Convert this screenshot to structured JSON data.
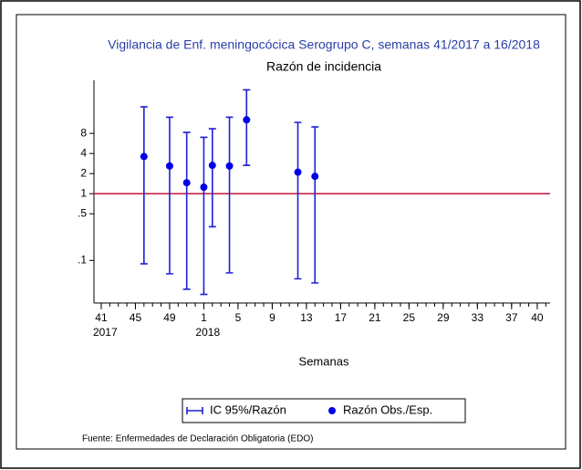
{
  "chart_data": {
    "type": "errorbar-scatter",
    "title": "Vigilancia de Enf. meningocócica Serogrupo C, semanas 41/2017 a 16/2018",
    "subtitle": "Razón de incidencia",
    "x_label": "Semanas",
    "source": "Fuente: Enfermedades de Declaración Obligatoria (EDO)",
    "year_labels": [
      {
        "value": 0,
        "label": "2017"
      },
      {
        "value": 12,
        "label": "2018"
      }
    ],
    "x": [
      5,
      8,
      10,
      12,
      13,
      15,
      17,
      23,
      25
    ],
    "series": [
      {
        "name": "IC 95%/Razón",
        "color": "#1f1fd6",
        "low": [
          0.089,
          0.063,
          0.037,
          0.031,
          0.32,
          0.065,
          2.66,
          0.053,
          0.046
        ],
        "high": [
          20,
          14,
          8.3,
          7.0,
          9.4,
          14,
          36,
          11.7,
          10
        ]
      },
      {
        "name": "Razón Obs./Esp.",
        "color": "#0000e6",
        "values": [
          3.6,
          2.6,
          1.46,
          1.25,
          2.66,
          2.6,
          12.8,
          2.1,
          1.82
        ]
      }
    ],
    "ref_line": {
      "value": 1,
      "color": "#c0143c"
    },
    "log_y": true,
    "xlim": [
      -0.85,
      52.5
    ],
    "ylim": [
      0.023,
      50
    ],
    "xticks": [
      {
        "value": 0,
        "label": "41"
      },
      {
        "value": 4,
        "label": "45"
      },
      {
        "value": 8,
        "label": "49"
      },
      {
        "value": 12,
        "label": "1"
      },
      {
        "value": 16,
        "label": "5"
      },
      {
        "value": 20,
        "label": "9"
      },
      {
        "value": 24,
        "label": "13"
      },
      {
        "value": 28,
        "label": "17"
      },
      {
        "value": 32,
        "label": "21"
      },
      {
        "value": 36,
        "label": "25"
      },
      {
        "value": 40,
        "label": "29"
      },
      {
        "value": 44,
        "label": "33"
      },
      {
        "value": 48,
        "label": "37"
      },
      {
        "value": 51,
        "label": "40"
      }
    ],
    "yticks": [
      8,
      4,
      2,
      1,
      {
        "value": 0.5,
        "label": ".5"
      },
      {
        "value": 0.1,
        "label": ".1"
      }
    ],
    "legend": "bottom"
  }
}
